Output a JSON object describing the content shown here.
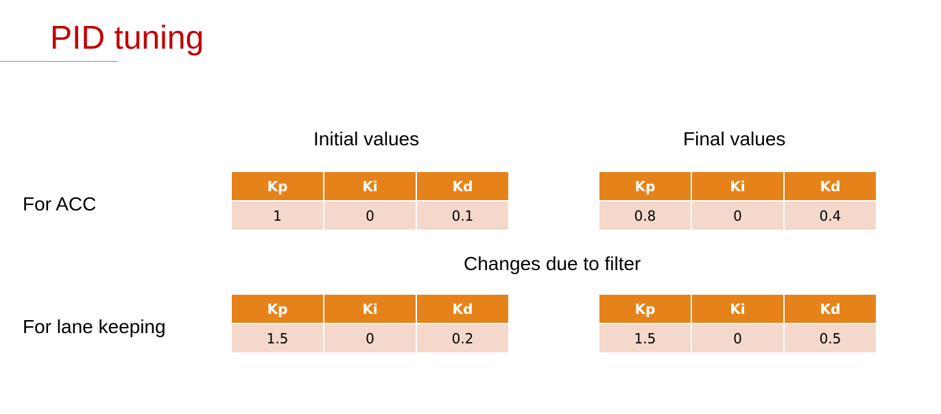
{
  "slide": {
    "title": "PID tuning",
    "headings": {
      "initial": "Initial values",
      "final": "Final values",
      "changes": "Changes due to filter"
    },
    "row_labels": {
      "acc": "For ACC",
      "lane": "For lane keeping"
    },
    "tables": [
      {
        "headers": [
          "Kp",
          "Ki",
          "Kd"
        ],
        "values": [
          "1",
          "0",
          "0.1"
        ]
      },
      {
        "headers": [
          "Kp",
          "Ki",
          "Kd"
        ],
        "values": [
          "0.8",
          "0",
          "0.4"
        ]
      },
      {
        "headers": [
          "Kp",
          "Ki",
          "Kd"
        ],
        "values": [
          "1.5",
          "0",
          "0.2"
        ]
      },
      {
        "headers": [
          "Kp",
          "Ki",
          "Kd"
        ],
        "values": [
          "1.5",
          "0",
          "0.5"
        ]
      }
    ]
  },
  "colors": {
    "title": "#c00000",
    "header_fill": "#e5831a",
    "cell_fill": "#f4d8cc"
  }
}
